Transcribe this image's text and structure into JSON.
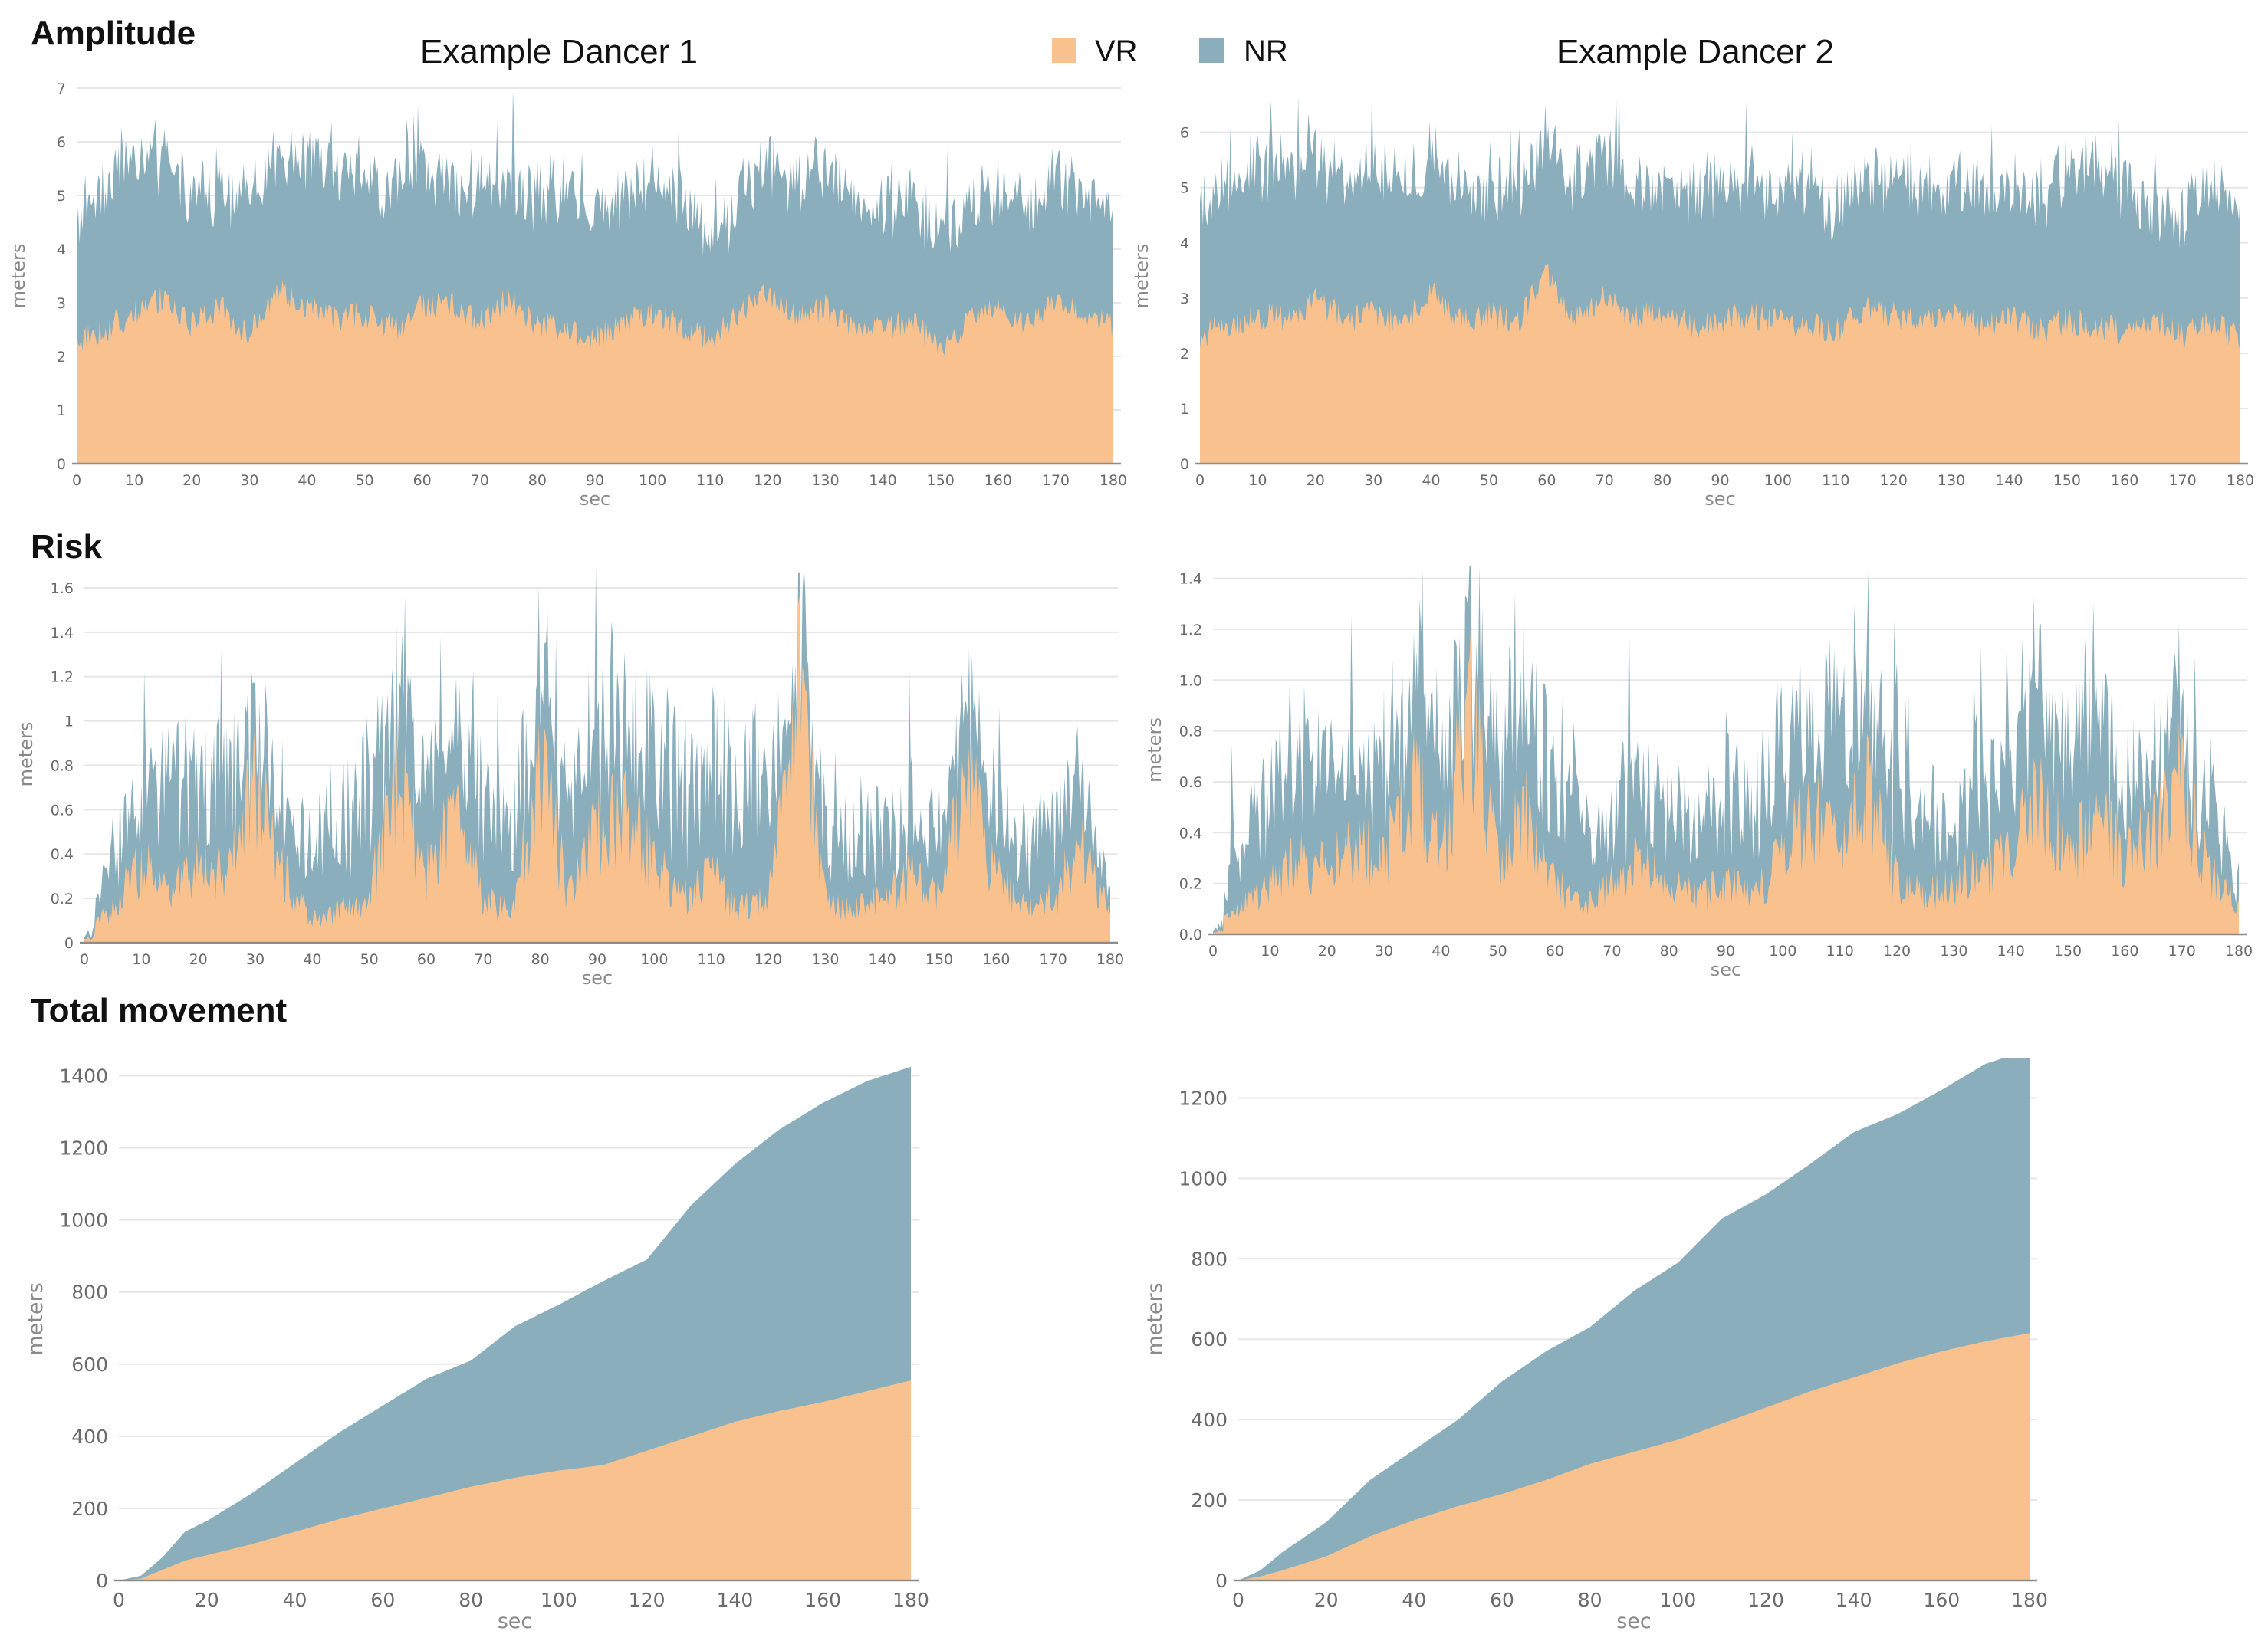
{
  "sections": {
    "amplitude": "Amplitude",
    "risk": "Risk",
    "total_movement": "Total movement"
  },
  "dancers": [
    "Example Dancer 1",
    "Example Dancer 2"
  ],
  "legend": [
    {
      "label": "VR",
      "color": "#f8c18e"
    },
    {
      "label": "NR",
      "color": "#8aaebb"
    }
  ],
  "colors": {
    "vr": "#f8c18e",
    "nr": "#8aaebb"
  },
  "chart_data": [
    {
      "id": "amp1",
      "type": "area",
      "stacked": true,
      "section": "Amplitude",
      "dancer": "Example Dancer 1",
      "xlabel": "sec",
      "ylabel": "meters",
      "xlim": [
        0,
        180
      ],
      "ylim": [
        0,
        7
      ],
      "xticks": [
        0,
        10,
        20,
        30,
        40,
        50,
        60,
        70,
        80,
        90,
        100,
        110,
        120,
        130,
        140,
        150,
        160,
        170,
        180
      ],
      "yticks": [
        0,
        1,
        2,
        3,
        4,
        5,
        6,
        7
      ],
      "x": [
        0,
        5,
        10,
        15,
        20,
        25,
        30,
        35,
        40,
        45,
        50,
        55,
        60,
        65,
        70,
        75,
        80,
        85,
        90,
        95,
        100,
        105,
        110,
        115,
        120,
        125,
        130,
        135,
        140,
        145,
        150,
        155,
        160,
        165,
        170,
        175,
        180
      ],
      "series": [
        {
          "name": "VR",
          "values": [
            2.3,
            2.5,
            2.8,
            3.1,
            2.6,
            2.9,
            2.4,
            3.3,
            2.9,
            2.7,
            2.8,
            2.5,
            2.9,
            3.0,
            2.6,
            3.1,
            2.6,
            2.5,
            2.3,
            2.7,
            2.8,
            2.6,
            2.3,
            2.8,
            3.2,
            2.8,
            2.9,
            2.6,
            2.5,
            2.7,
            2.1,
            2.7,
            2.9,
            2.6,
            3.1,
            2.8,
            2.6
          ]
        },
        {
          "name": "NR",
          "values": [
            2.2,
            2.8,
            2.9,
            2.6,
            2.4,
            2.3,
            2.5,
            2.4,
            2.8,
            2.6,
            2.5,
            2.6,
            2.7,
            2.2,
            2.6,
            2.3,
            2.4,
            2.6,
            2.4,
            2.4,
            2.3,
            2.6,
            1.8,
            2.1,
            2.4,
            2.5,
            2.6,
            2.5,
            2.3,
            2.4,
            2.1,
            2.2,
            2.2,
            2.1,
            2.3,
            2.2,
            2.2
          ]
        }
      ]
    },
    {
      "id": "amp2",
      "type": "area",
      "stacked": true,
      "section": "Amplitude",
      "dancer": "Example Dancer 2",
      "xlabel": "sec",
      "ylabel": "meters",
      "xlim": [
        0,
        180
      ],
      "ylim": [
        0,
        6.8
      ],
      "xticks": [
        0,
        10,
        20,
        30,
        40,
        50,
        60,
        70,
        80,
        90,
        100,
        110,
        120,
        130,
        140,
        150,
        160,
        170,
        180
      ],
      "yticks": [
        0,
        1,
        2,
        3,
        4,
        5,
        6
      ],
      "x": [
        0,
        5,
        10,
        15,
        20,
        25,
        30,
        35,
        40,
        45,
        50,
        55,
        60,
        65,
        70,
        75,
        80,
        85,
        90,
        95,
        100,
        105,
        110,
        115,
        120,
        125,
        130,
        135,
        140,
        145,
        150,
        155,
        160,
        165,
        170,
        175,
        180
      ],
      "series": [
        {
          "name": "VR",
          "values": [
            2.3,
            2.5,
            2.7,
            2.6,
            3.0,
            2.6,
            2.7,
            2.5,
            3.1,
            2.6,
            2.7,
            2.6,
            3.4,
            2.6,
            3.0,
            2.6,
            2.8,
            2.5,
            2.6,
            2.7,
            2.6,
            2.5,
            2.4,
            2.8,
            2.7,
            2.6,
            2.7,
            2.5,
            2.7,
            2.4,
            2.6,
            2.5,
            2.4,
            2.6,
            2.3,
            2.6,
            2.2
          ]
        },
        {
          "name": "NR",
          "values": [
            2.3,
            2.6,
            2.7,
            2.6,
            2.4,
            2.5,
            2.6,
            2.6,
            2.4,
            2.4,
            2.2,
            2.5,
            2.3,
            2.5,
            2.7,
            2.4,
            2.3,
            2.4,
            2.6,
            2.4,
            2.2,
            2.6,
            2.2,
            2.3,
            2.4,
            2.4,
            2.3,
            2.5,
            2.3,
            2.4,
            2.7,
            3.1,
            2.6,
            1.9,
            2.2,
            2.6,
            2.3
          ]
        }
      ]
    },
    {
      "id": "risk1",
      "type": "area",
      "stacked": true,
      "section": "Risk",
      "dancer": "Example Dancer 1",
      "xlabel": "sec",
      "ylabel": "meters",
      "xlim": [
        0,
        180
      ],
      "ylim": [
        0,
        1.7
      ],
      "xticks": [
        0,
        10,
        20,
        30,
        40,
        50,
        60,
        70,
        80,
        90,
        100,
        110,
        120,
        130,
        140,
        150,
        160,
        170,
        180
      ],
      "yticks": [
        0,
        0.2,
        0.4,
        0.6,
        0.8,
        1,
        1.2,
        1.4,
        1.6
      ],
      "x": [
        0,
        5,
        10,
        15,
        20,
        25,
        30,
        35,
        40,
        45,
        50,
        55,
        60,
        65,
        70,
        75,
        80,
        85,
        90,
        95,
        100,
        105,
        110,
        115,
        120,
        125,
        130,
        135,
        140,
        145,
        150,
        155,
        160,
        165,
        170,
        175,
        180
      ],
      "series": [
        {
          "name": "VR",
          "values": [
            0.05,
            0.15,
            0.35,
            0.2,
            0.4,
            0.3,
            0.7,
            0.3,
            0.1,
            0.15,
            0.2,
            0.8,
            0.3,
            0.6,
            0.2,
            0.15,
            0.8,
            0.2,
            0.5,
            0.6,
            0.35,
            0.2,
            0.3,
            0.15,
            0.2,
            1.2,
            0.2,
            0.15,
            0.2,
            0.3,
            0.2,
            0.75,
            0.3,
            0.15,
            0.2,
            0.45,
            0.1
          ]
        },
        {
          "name": "NR",
          "values": [
            0.05,
            0.25,
            0.4,
            0.5,
            0.45,
            0.5,
            0.3,
            0.25,
            0.4,
            0.45,
            0.55,
            0.4,
            0.45,
            0.4,
            0.5,
            0.4,
            0.5,
            0.45,
            0.5,
            0.45,
            0.6,
            0.5,
            0.6,
            0.55,
            0.6,
            0.2,
            0.35,
            0.4,
            0.35,
            0.3,
            0.3,
            0.35,
            0.25,
            0.3,
            0.4,
            0.35,
            0.1
          ]
        }
      ]
    },
    {
      "id": "risk2",
      "type": "area",
      "stacked": true,
      "section": "Risk",
      "dancer": "Example Dancer 2",
      "xlabel": "sec",
      "ylabel": "meters",
      "xlim": [
        0,
        180
      ],
      "ylim": [
        0,
        1.45
      ],
      "xticks": [
        0,
        10,
        20,
        30,
        40,
        50,
        60,
        70,
        80,
        90,
        100,
        110,
        120,
        130,
        140,
        150,
        160,
        170,
        180
      ],
      "yticks": [
        0.0,
        0.2,
        0.4,
        0.6,
        0.8,
        1.0,
        1.2,
        1.4
      ],
      "x": [
        0,
        5,
        10,
        15,
        20,
        25,
        30,
        35,
        40,
        45,
        50,
        55,
        60,
        65,
        70,
        75,
        80,
        85,
        90,
        95,
        100,
        105,
        110,
        115,
        120,
        125,
        130,
        135,
        140,
        145,
        150,
        155,
        160,
        165,
        170,
        175,
        180
      ],
      "series": [
        {
          "name": "VR",
          "values": [
            0.02,
            0.1,
            0.2,
            0.3,
            0.25,
            0.35,
            0.3,
            0.6,
            0.3,
            0.9,
            0.3,
            0.5,
            0.2,
            0.1,
            0.2,
            0.3,
            0.2,
            0.15,
            0.2,
            0.15,
            0.3,
            0.5,
            0.3,
            0.6,
            0.2,
            0.15,
            0.2,
            0.25,
            0.3,
            0.6,
            0.3,
            0.5,
            0.3,
            0.4,
            0.6,
            0.25,
            0.1
          ]
        },
        {
          "name": "NR",
          "values": [
            0.02,
            0.25,
            0.4,
            0.45,
            0.4,
            0.35,
            0.4,
            0.5,
            0.4,
            0.3,
            0.5,
            0.5,
            0.4,
            0.3,
            0.35,
            0.4,
            0.3,
            0.3,
            0.35,
            0.4,
            0.45,
            0.4,
            0.5,
            0.45,
            0.3,
            0.35,
            0.3,
            0.35,
            0.4,
            0.45,
            0.5,
            0.45,
            0.3,
            0.35,
            0.3,
            0.35,
            0.1
          ]
        }
      ]
    },
    {
      "id": "total1",
      "type": "area",
      "stacked": true,
      "section": "Total movement",
      "dancer": "Example Dancer 1",
      "xlabel": "sec",
      "ylabel": "meters",
      "xlim": [
        0,
        180
      ],
      "ylim": [
        0,
        1450
      ],
      "xticks": [
        0,
        20,
        40,
        60,
        80,
        100,
        120,
        140,
        160,
        180
      ],
      "yticks": [
        0,
        200,
        400,
        600,
        800,
        1000,
        1200,
        1400
      ],
      "x": [
        0,
        5,
        10,
        15,
        20,
        30,
        40,
        50,
        60,
        70,
        80,
        90,
        100,
        110,
        120,
        130,
        140,
        150,
        160,
        170,
        180
      ],
      "series": [
        {
          "name": "VR",
          "values": [
            0,
            5,
            30,
            55,
            70,
            100,
            135,
            170,
            200,
            230,
            260,
            285,
            305,
            320,
            360,
            400,
            440,
            470,
            495,
            525,
            555
          ]
        },
        {
          "name": "NR",
          "values": [
            0,
            8,
            35,
            80,
            95,
            140,
            190,
            240,
            285,
            330,
            350,
            420,
            460,
            510,
            530,
            640,
            715,
            780,
            830,
            860,
            870
          ]
        }
      ]
    },
    {
      "id": "total2",
      "type": "area",
      "stacked": true,
      "section": "Total movement",
      "dancer": "Example Dancer 2",
      "xlabel": "sec",
      "ylabel": "meters",
      "xlim": [
        0,
        180
      ],
      "ylim": [
        0,
        1300
      ],
      "xticks": [
        0,
        20,
        40,
        60,
        80,
        100,
        120,
        140,
        160,
        180
      ],
      "yticks": [
        0,
        200,
        400,
        600,
        800,
        1000,
        1200
      ],
      "x": [
        0,
        5,
        10,
        20,
        30,
        40,
        50,
        60,
        70,
        80,
        90,
        100,
        110,
        120,
        130,
        140,
        150,
        160,
        170,
        180
      ],
      "series": [
        {
          "name": "VR",
          "values": [
            0,
            10,
            25,
            60,
            110,
            150,
            185,
            215,
            250,
            290,
            320,
            350,
            390,
            430,
            470,
            505,
            540,
            570,
            595,
            615
          ]
        },
        {
          "name": "NR",
          "values": [
            0,
            15,
            45,
            85,
            140,
            175,
            215,
            280,
            320,
            340,
            400,
            440,
            510,
            530,
            565,
            610,
            620,
            650,
            690,
            705
          ]
        }
      ]
    }
  ]
}
